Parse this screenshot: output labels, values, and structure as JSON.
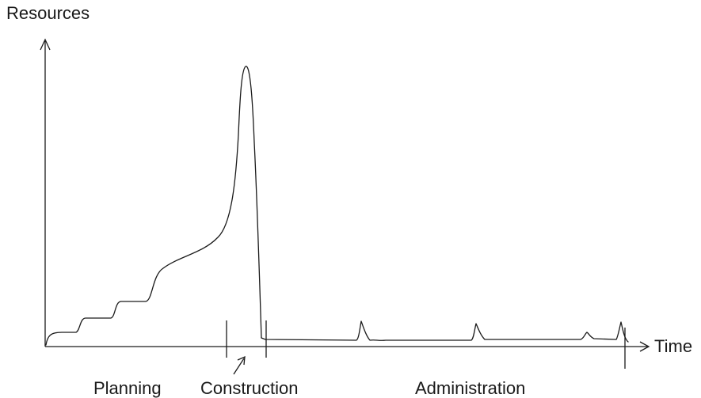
{
  "diagram": {
    "y_axis_label": "Resources",
    "x_axis_label": "Time",
    "phases": [
      {
        "id": "planning",
        "label": "Planning"
      },
      {
        "id": "construction",
        "label": "Construction"
      },
      {
        "id": "administration",
        "label": "Administration"
      }
    ],
    "line_color": "#1a1a1a",
    "background": "#ffffff"
  }
}
